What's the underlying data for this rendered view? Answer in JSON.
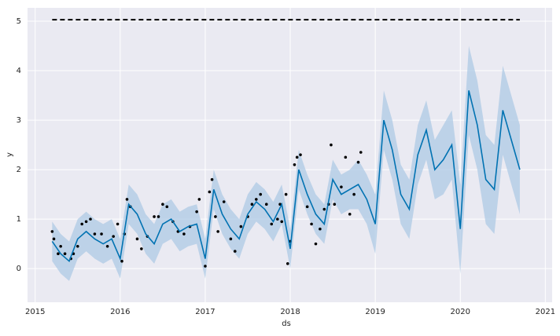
{
  "chart_data": {
    "type": "line",
    "x_label": "ds",
    "y_label": "y",
    "xlim": [
      2014.91,
      2021.08
    ],
    "ylim": [
      -0.68,
      5.27
    ],
    "xticks": [
      2015,
      2016,
      2017,
      2018,
      2019,
      2020,
      2021
    ],
    "yticks": [
      0,
      1,
      2,
      3,
      4,
      5
    ],
    "grid": true,
    "color": "#0072b2",
    "band_color": "#a9c8e4",
    "point_color": "#000000",
    "cap_color": "#000000",
    "x": [
      2015.2,
      2015.3,
      2015.4,
      2015.5,
      2015.6,
      2015.7,
      2015.8,
      2015.9,
      2016.0,
      2016.1,
      2016.2,
      2016.3,
      2016.4,
      2016.5,
      2016.6,
      2016.7,
      2016.8,
      2016.9,
      2017.0,
      2017.1,
      2017.2,
      2017.3,
      2017.4,
      2017.5,
      2017.6,
      2017.7,
      2017.8,
      2017.9,
      2018.0,
      2018.1,
      2018.2,
      2018.3,
      2018.4,
      2018.5,
      2018.6,
      2018.7,
      2018.8,
      2018.9,
      2019.0,
      2019.1,
      2019.2,
      2019.3,
      2019.4,
      2019.5,
      2019.6,
      2019.7,
      2019.8,
      2019.9,
      2020.0,
      2020.1,
      2020.2,
      2020.3,
      2020.4,
      2020.5,
      2020.6,
      2020.7
    ],
    "values": [
      0.55,
      0.3,
      0.15,
      0.6,
      0.75,
      0.6,
      0.5,
      0.6,
      0.2,
      1.3,
      1.1,
      0.7,
      0.5,
      0.9,
      1.0,
      0.75,
      0.85,
      0.9,
      0.2,
      1.6,
      1.1,
      0.8,
      0.6,
      1.1,
      1.35,
      1.2,
      0.95,
      1.3,
      0.4,
      2.0,
      1.5,
      1.1,
      0.9,
      1.8,
      1.5,
      1.6,
      1.7,
      1.4,
      0.9,
      3.0,
      2.4,
      1.5,
      1.2,
      2.3,
      2.8,
      2.0,
      2.2,
      2.5,
      0.8,
      3.6,
      2.9,
      1.8,
      1.6,
      3.2,
      2.6,
      2.0
    ],
    "lower": [
      0.15,
      -0.1,
      -0.25,
      0.2,
      0.35,
      0.2,
      0.1,
      0.2,
      -0.2,
      0.9,
      0.7,
      0.3,
      0.1,
      0.5,
      0.6,
      0.35,
      0.45,
      0.5,
      -0.2,
      1.2,
      0.7,
      0.4,
      0.2,
      0.7,
      0.95,
      0.8,
      0.55,
      0.9,
      0.0,
      1.6,
      1.1,
      0.7,
      0.5,
      1.4,
      1.1,
      1.2,
      1.2,
      0.9,
      0.3,
      2.4,
      1.8,
      0.9,
      0.6,
      1.7,
      2.2,
      1.4,
      1.5,
      1.8,
      -0.1,
      2.7,
      2.0,
      0.9,
      0.7,
      2.3,
      1.7,
      1.1
    ],
    "upper": [
      0.95,
      0.7,
      0.55,
      1.0,
      1.15,
      1.0,
      0.9,
      1.0,
      0.6,
      1.7,
      1.5,
      1.1,
      0.9,
      1.3,
      1.4,
      1.15,
      1.25,
      1.3,
      0.6,
      2.0,
      1.5,
      1.2,
      1.0,
      1.5,
      1.75,
      1.6,
      1.35,
      1.7,
      0.8,
      2.4,
      1.9,
      1.5,
      1.3,
      2.2,
      1.9,
      2.0,
      2.2,
      1.9,
      1.5,
      3.6,
      3.0,
      2.1,
      1.8,
      2.9,
      3.4,
      2.6,
      2.9,
      3.2,
      1.7,
      4.5,
      3.8,
      2.7,
      2.5,
      4.1,
      3.5,
      2.9
    ],
    "observed": {
      "x": [
        2015.2,
        2015.22,
        2015.27,
        2015.3,
        2015.35,
        2015.42,
        2015.45,
        2015.5,
        2015.55,
        2015.6,
        2015.65,
        2015.7,
        2015.78,
        2015.85,
        2015.92,
        2015.97,
        2016.02,
        2016.05,
        2016.08,
        2016.12,
        2016.2,
        2016.25,
        2016.32,
        2016.4,
        2016.45,
        2016.5,
        2016.55,
        2016.62,
        2016.68,
        2016.75,
        2016.82,
        2016.9,
        2016.93,
        2017.0,
        2017.05,
        2017.08,
        2017.12,
        2017.15,
        2017.22,
        2017.3,
        2017.35,
        2017.42,
        2017.5,
        2017.55,
        2017.6,
        2017.65,
        2017.72,
        2017.78,
        2017.85,
        2017.88,
        2017.9,
        2017.95,
        2017.97,
        2018.0,
        2018.05,
        2018.08,
        2018.12,
        2018.2,
        2018.25,
        2018.3,
        2018.35,
        2018.4,
        2018.45,
        2018.48,
        2018.52,
        2018.6,
        2018.65,
        2018.7,
        2018.75,
        2018.8,
        2018.83
      ],
      "values": [
        0.75,
        0.6,
        0.3,
        0.45,
        0.3,
        0.2,
        0.3,
        0.45,
        0.9,
        0.95,
        1.0,
        0.7,
        0.7,
        0.45,
        0.65,
        0.9,
        0.15,
        0.7,
        1.4,
        1.25,
        0.6,
        0.4,
        0.65,
        1.05,
        1.05,
        1.3,
        1.25,
        0.95,
        0.75,
        0.7,
        0.85,
        1.15,
        1.4,
        0.05,
        1.55,
        1.8,
        1.05,
        0.75,
        1.35,
        0.6,
        0.35,
        0.85,
        1.05,
        1.3,
        1.4,
        1.5,
        1.3,
        0.9,
        1.0,
        1.3,
        0.95,
        1.5,
        0.1,
        0.55,
        2.1,
        2.25,
        2.3,
        1.25,
        0.9,
        0.5,
        0.8,
        1.2,
        1.3,
        2.5,
        1.3,
        1.65,
        2.25,
        1.1,
        1.5,
        2.15,
        2.35
      ]
    },
    "cap": {
      "x": [
        2015.2,
        2020.7
      ],
      "values": [
        5.03,
        5.03
      ]
    }
  }
}
